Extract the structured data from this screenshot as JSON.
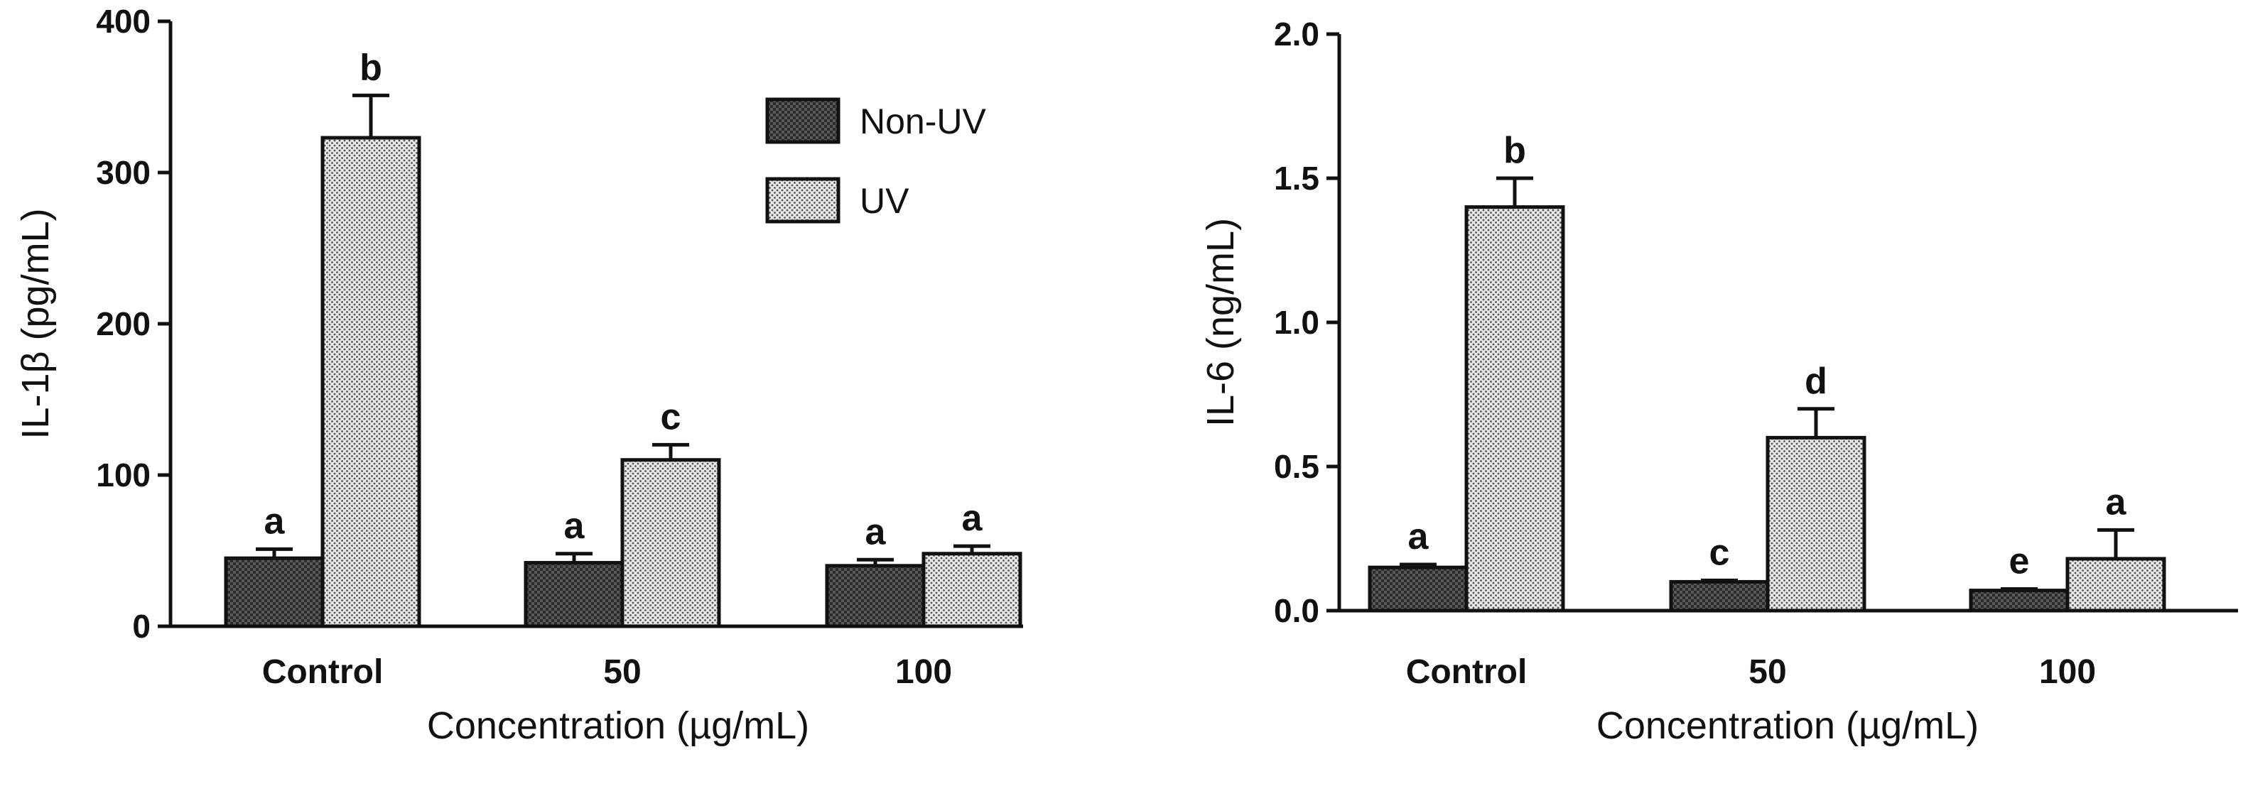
{
  "colors": {
    "non_uv_fill": "#5a5a5a",
    "uv_fill": "#d4d4d4",
    "outline": "#111111",
    "background": "#ffffff"
  },
  "chart_data": [
    {
      "type": "bar",
      "categories": [
        "Control",
        "50",
        "100"
      ],
      "xlabel": "Concentration (µg/mL)",
      "ylabel": "IL-1β (pg/mL)",
      "ylim": [
        0,
        400
      ],
      "yticks": [
        "0",
        "100",
        "200",
        "300",
        "400"
      ],
      "legend": {
        "position": "top-right",
        "entries": [
          "Non-UV",
          "UV"
        ]
      },
      "series": [
        {
          "name": "Non-UV",
          "values": [
            45,
            42,
            40
          ],
          "errors": [
            6,
            6,
            4
          ],
          "labels": [
            "a",
            "a",
            "a"
          ]
        },
        {
          "name": "UV",
          "values": [
            323,
            110,
            48
          ],
          "errors": [
            28,
            10,
            5
          ],
          "labels": [
            "b",
            "c",
            "a"
          ]
        }
      ]
    },
    {
      "type": "bar",
      "categories": [
        "Control",
        "50",
        "100"
      ],
      "xlabel": "Concentration (µg/mL)",
      "ylabel": "IL-6 (ng/mL)",
      "ylim": [
        0,
        2.0
      ],
      "yticks": [
        "0.0",
        "0.5",
        "1.0",
        "1.5",
        "2.0"
      ],
      "series": [
        {
          "name": "Non-UV",
          "values": [
            0.15,
            0.1,
            0.07
          ],
          "errors": [
            0.01,
            0.005,
            0.005
          ],
          "labels": [
            "a",
            "c",
            "e"
          ]
        },
        {
          "name": "UV",
          "values": [
            1.4,
            0.6,
            0.18
          ],
          "errors": [
            0.1,
            0.1,
            0.1
          ],
          "labels": [
            "b",
            "d",
            "a"
          ]
        }
      ]
    }
  ]
}
